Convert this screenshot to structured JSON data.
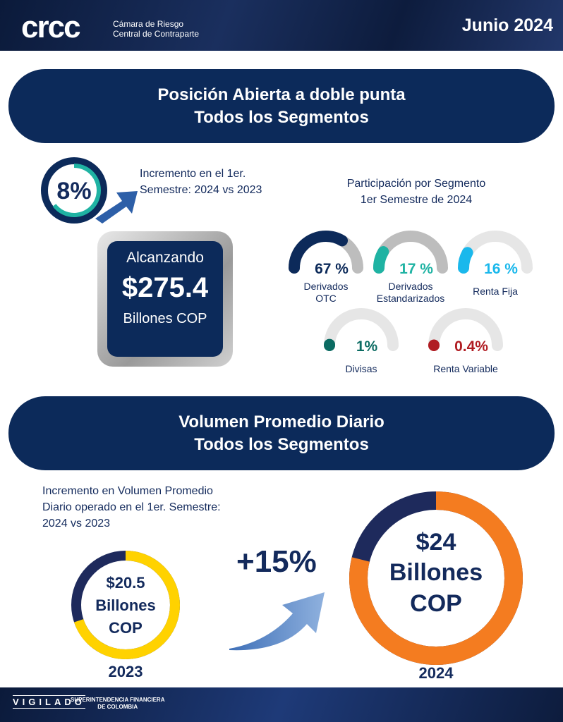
{
  "header": {
    "logo": "crcc",
    "org_line1": "Cámara de Riesgo",
    "org_line2": "Central de Contraparte",
    "period": "Junio 2024"
  },
  "section1": {
    "title_line1": "Posición Abierta a doble punta",
    "title_line2": "Todos los Segmentos",
    "increase_pct": "8%",
    "increase_text_line1": "Incremento   en   el   1er.",
    "increase_text_line2": "Semestre: 2024 vs  2023",
    "box_label": "Alcanzando",
    "box_value": "$275.4",
    "box_unit": "Billones COP",
    "participation_title_line1": "Participación por Segmento",
    "participation_title_line2": "1er Semestre de 2024",
    "segments": [
      {
        "label_line1": "Derivados",
        "label_line2": "OTC",
        "value_text": "67 %",
        "value": 67,
        "color": "#0c2a5a"
      },
      {
        "label_line1": "Derivados",
        "label_line2": "Estandarizados",
        "value_text": "17 %",
        "value": 17,
        "color": "#1fb3a3"
      },
      {
        "label_line1": "Renta Fija",
        "label_line2": "",
        "value_text": "16 %",
        "value": 16,
        "color": "#1ab8ec"
      },
      {
        "label_line1": "Divisas",
        "label_line2": "",
        "value_text": "1%",
        "value": 1,
        "color": "#0b6b62"
      },
      {
        "label_line1": "Renta Variable",
        "label_line2": "",
        "value_text": "0.4%",
        "value": 0.4,
        "color": "#b01c22"
      }
    ]
  },
  "section2": {
    "title_line1": "Volumen Promedio Diario",
    "title_line2": "Todos los Segmentos",
    "text_line1": "Incremento en Volumen Promedio",
    "text_line2": "Diario operado en el 1er. Semestre:",
    "text_line3": "2024 vs  2023",
    "y2023": {
      "value": "$20.5",
      "unit1": "Billones",
      "unit2": "COP",
      "year": "2023"
    },
    "y2024": {
      "value": "$24",
      "unit1": "Billones",
      "unit2": "COP",
      "year": "2024"
    },
    "growth": "+15%"
  },
  "footer": {
    "vigilado": "VIGILADO",
    "sfc_line1": "SUPERINTENDENCIA FINANCIERA",
    "sfc_line2": "DE COLOMBIA"
  }
}
